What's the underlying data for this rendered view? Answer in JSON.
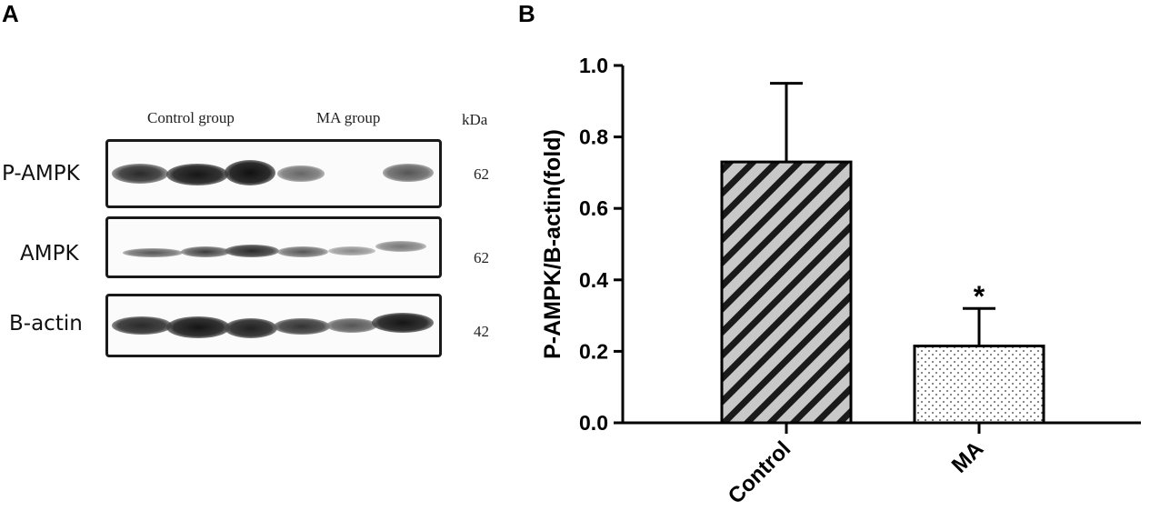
{
  "panel_a": {
    "label": "A",
    "groups": {
      "control": "Control group",
      "ma": "MA group"
    },
    "kda_header": "kDa",
    "rows": [
      {
        "label": "P-AMPK",
        "size": "62"
      },
      {
        "label": "AMPK",
        "size": "62"
      },
      {
        "label": "B-actin",
        "size": "42"
      }
    ]
  },
  "panel_b": {
    "label": "B",
    "significance_marker": "*"
  },
  "chart_data": {
    "type": "bar",
    "categories": [
      "Control",
      "MA"
    ],
    "values": [
      0.73,
      0.215
    ],
    "errors": [
      0.22,
      0.105
    ],
    "ylabel": "P-AMPK/B-actin(fold)",
    "xlabel": "",
    "ylim": [
      0,
      1.0
    ],
    "yticks": [
      "0.0",
      "0.2",
      "0.4",
      "0.6",
      "0.8",
      "1.0"
    ],
    "patterns": [
      "diagonal-hatch",
      "dots"
    ],
    "annotations": [
      {
        "category": "MA",
        "text": "*"
      }
    ]
  }
}
